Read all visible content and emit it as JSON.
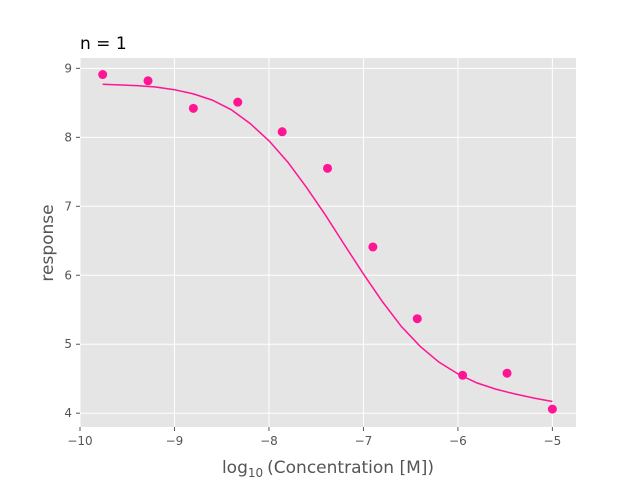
{
  "chart_data": {
    "type": "scatter",
    "title": "n = 1",
    "xlabel": "log10 (Concentration [M])",
    "xlabel_parts": {
      "base": "log",
      "subscript": "10",
      "rest": "(Concentration [M])"
    },
    "ylabel": "response",
    "xlim": [
      -10.0,
      -4.75
    ],
    "ylim": [
      3.8,
      9.15
    ],
    "xticks": [
      -10,
      -9,
      -8,
      -7,
      -6,
      -5
    ],
    "xtick_labels": [
      "−10",
      "−9",
      "−8",
      "−7",
      "−6",
      "−5"
    ],
    "yticks": [
      4,
      5,
      6,
      7,
      8,
      9
    ],
    "ytick_labels": [
      "4",
      "5",
      "6",
      "7",
      "8",
      "9"
    ],
    "grid": true,
    "style": "ggplot",
    "colors": {
      "series": "#ff1493",
      "panel": "#e5e5e5",
      "grid": "#ffffff"
    },
    "series": [
      {
        "kind": "points",
        "x": [
          -9.76,
          -9.28,
          -8.8,
          -8.33,
          -7.86,
          -7.38,
          -6.9,
          -6.43,
          -5.95,
          -5.48,
          -5.0
        ],
        "y": [
          8.91,
          8.82,
          8.42,
          8.51,
          8.08,
          7.55,
          6.41,
          5.37,
          4.55,
          4.58,
          4.06
        ]
      },
      {
        "kind": "fit",
        "x": [
          -9.76,
          -9.6,
          -9.4,
          -9.2,
          -9.0,
          -8.8,
          -8.6,
          -8.4,
          -8.2,
          -8.0,
          -7.8,
          -7.6,
          -7.4,
          -7.2,
          -7.0,
          -6.8,
          -6.6,
          -6.4,
          -6.2,
          -6.0,
          -5.8,
          -5.6,
          -5.4,
          -5.2,
          -5.0
        ],
        "y": [
          8.77,
          8.76,
          8.75,
          8.73,
          8.69,
          8.63,
          8.54,
          8.4,
          8.2,
          7.95,
          7.64,
          7.27,
          6.87,
          6.44,
          6.02,
          5.62,
          5.26,
          4.97,
          4.74,
          4.57,
          4.44,
          4.35,
          4.28,
          4.22,
          4.17
        ]
      }
    ]
  }
}
